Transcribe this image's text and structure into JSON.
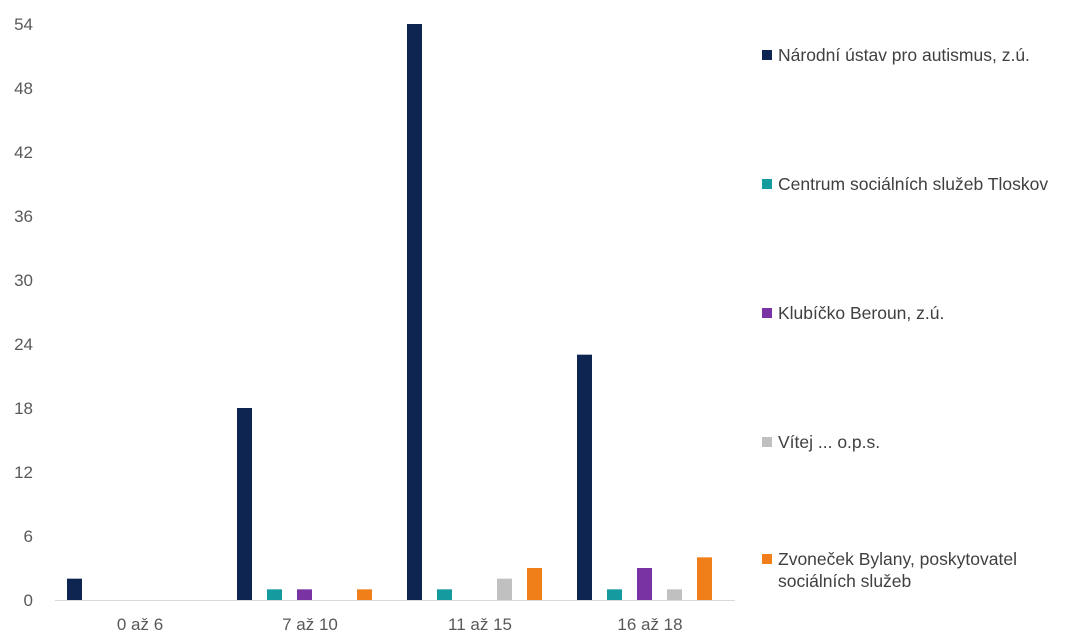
{
  "chart_data": {
    "type": "bar",
    "title": "",
    "xlabel": "",
    "ylabel": "",
    "ylim": [
      0,
      54
    ],
    "yticks": [
      0,
      6,
      12,
      18,
      24,
      30,
      36,
      42,
      48,
      54
    ],
    "grid": false,
    "legend_position": "right",
    "categories": [
      "0 až 6",
      "7 až 10",
      "11 až 15",
      "16 až 18"
    ],
    "series": [
      {
        "name": "Národní ústav pro autismus, z.ú.",
        "color": "#0e2552",
        "values": [
          2,
          18,
          54,
          23
        ]
      },
      {
        "name": "Centrum sociálních služeb Tloskov",
        "color": "#139b9f",
        "values": [
          0,
          1,
          1,
          1
        ]
      },
      {
        "name": "Klubíčko Beroun, z.ú.",
        "color": "#7a33a3",
        "values": [
          0,
          1,
          0,
          3
        ]
      },
      {
        "name": "Vítej ... o.p.s.",
        "color": "#c0c0c0",
        "values": [
          0,
          0,
          2,
          1
        ]
      },
      {
        "name": "Zvoneček Bylany, poskytovatel sociálních služeb",
        "color": "#f07f1a",
        "values": [
          0,
          1,
          3,
          4
        ]
      }
    ]
  }
}
